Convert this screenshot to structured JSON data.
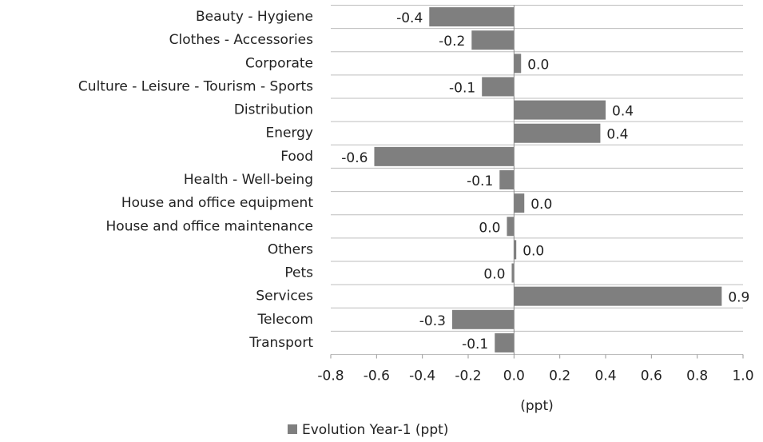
{
  "chart_data": {
    "type": "bar",
    "orientation": "horizontal",
    "categories": [
      "Beauty - Hygiene",
      "Clothes - Accessories",
      "Corporate",
      "Culture - Leisure - Tourism - Sports",
      "Distribution",
      "Energy",
      "Food",
      "Health - Well-being",
      "House and office equipment",
      "House and office maintenance",
      "Others",
      "Pets",
      "Services",
      "Telecom",
      "Transport"
    ],
    "series": [
      {
        "name": "Evolution Year-1 (ppt)",
        "color": "#7f7f7f",
        "values": [
          -0.37,
          -0.185,
          0.031,
          -0.14,
          0.4,
          0.377,
          -0.61,
          -0.063,
          0.045,
          -0.031,
          0.01,
          -0.01,
          0.907,
          -0.27,
          -0.084
        ],
        "value_labels": [
          "-0.4",
          "-0.2",
          "0.0",
          "-0.1",
          "0.4",
          "0.4",
          "-0.6",
          "-0.1",
          "0.0",
          "0.0",
          "0.0",
          "0.0",
          "0.9",
          "-0.3",
          "-0.1"
        ]
      }
    ],
    "xlabel": "(ppt)",
    "xlim": [
      -0.8,
      1.0
    ],
    "xticks": [
      -0.8,
      -0.6,
      -0.4,
      -0.2,
      {
        "value": 0,
        "label": "0.0"
      },
      0.2,
      0.4,
      0.6,
      0.8,
      {
        "value": 1,
        "label": "1.0"
      }
    ],
    "legend": "bottom"
  }
}
